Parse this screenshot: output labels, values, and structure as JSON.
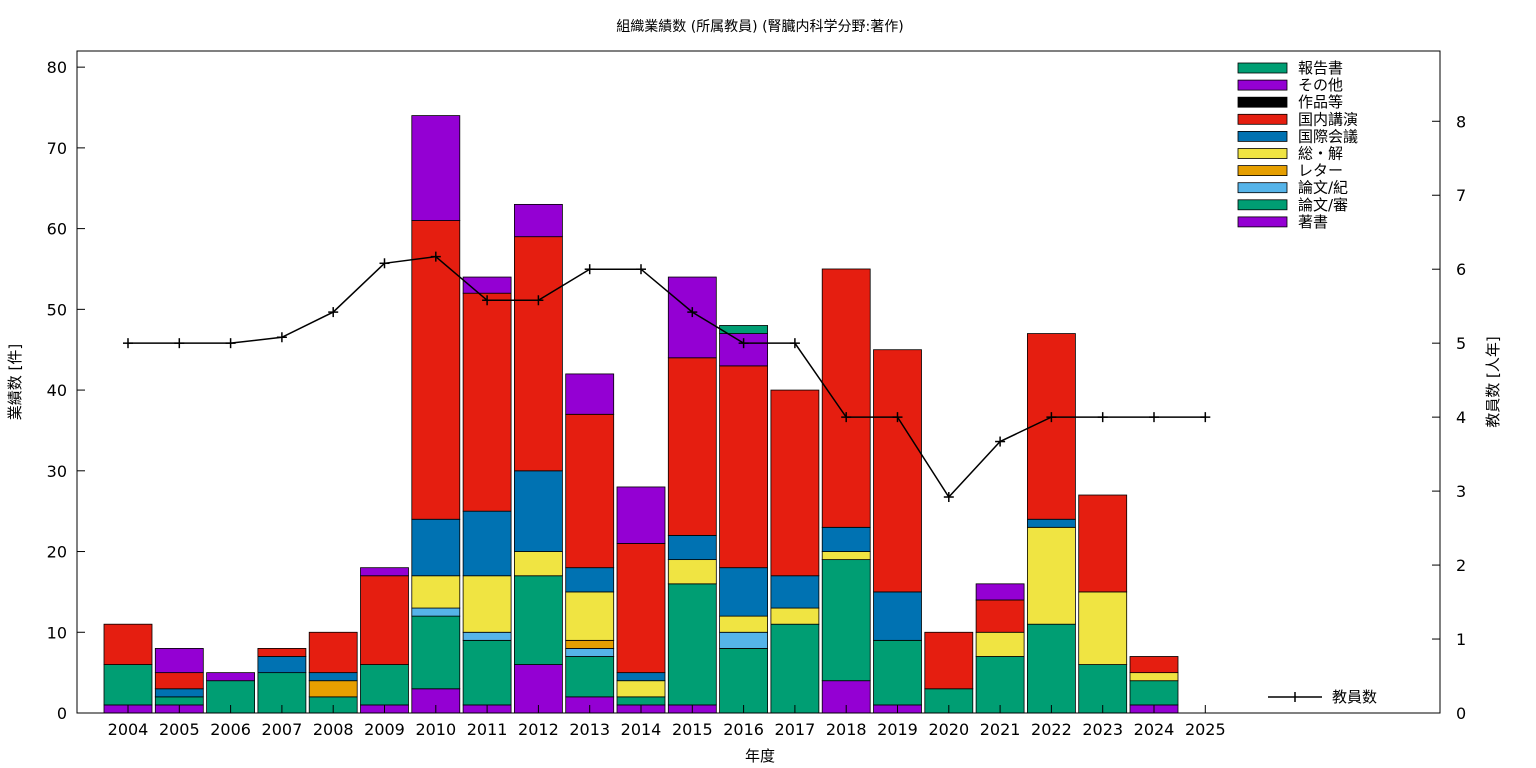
{
  "chart_data": {
    "type": "bar",
    "title": "組織業績数 (所属教員) (腎臓内科学分野:著作)",
    "xlabel": "年度",
    "ylabel": "業績数 [件]",
    "y2label": "教員数 [人年]",
    "ylim": [
      0,
      82
    ],
    "y2lim": [
      0,
      8.95
    ],
    "yticks": [
      0,
      10,
      20,
      30,
      40,
      50,
      60,
      70,
      80
    ],
    "y2ticks": [
      0,
      1,
      2,
      3,
      4,
      5,
      6,
      7,
      8
    ],
    "categories": [
      "2004",
      "2005",
      "2006",
      "2007",
      "2008",
      "2009",
      "2010",
      "2011",
      "2012",
      "2013",
      "2014",
      "2015",
      "2016",
      "2017",
      "2018",
      "2019",
      "2020",
      "2021",
      "2022",
      "2023",
      "2024",
      "2025"
    ],
    "stacked": true,
    "series": [
      {
        "name": "著書",
        "color": "#9400d3",
        "values": [
          1,
          1,
          0,
          0,
          0,
          1,
          3,
          1,
          6,
          2,
          1,
          1,
          0,
          0,
          4,
          1,
          0,
          0,
          0,
          0,
          1,
          0
        ]
      },
      {
        "name": "論文/審",
        "color": "#009e73",
        "values": [
          5,
          1,
          4,
          5,
          2,
          5,
          9,
          8,
          11,
          5,
          1,
          15,
          8,
          11,
          15,
          8,
          3,
          7,
          11,
          6,
          3,
          0
        ]
      },
      {
        "name": "論文/紀",
        "color": "#56b4e9",
        "values": [
          0,
          0,
          0,
          0,
          0,
          0,
          1,
          1,
          0,
          1,
          0,
          0,
          2,
          0,
          0,
          0,
          0,
          0,
          0,
          0,
          0,
          0
        ]
      },
      {
        "name": "レター",
        "color": "#e69f00",
        "values": [
          0,
          0,
          0,
          0,
          2,
          0,
          0,
          0,
          0,
          1,
          0,
          0,
          0,
          0,
          0,
          0,
          0,
          0,
          0,
          0,
          0,
          0
        ]
      },
      {
        "name": "総・解",
        "color": "#f0e442",
        "values": [
          0,
          0,
          0,
          0,
          0,
          0,
          4,
          7,
          3,
          6,
          2,
          3,
          2,
          2,
          1,
          0,
          0,
          3,
          12,
          9,
          1,
          0
        ]
      },
      {
        "name": "国際会議",
        "color": "#0072b2",
        "values": [
          0,
          1,
          0,
          2,
          1,
          0,
          7,
          8,
          10,
          3,
          1,
          3,
          6,
          4,
          3,
          6,
          0,
          0,
          1,
          0,
          0,
          0
        ]
      },
      {
        "name": "国内講演",
        "color": "#e51e10",
        "values": [
          5,
          2,
          0,
          1,
          5,
          11,
          37,
          27,
          29,
          19,
          16,
          22,
          25,
          23,
          32,
          30,
          7,
          4,
          23,
          12,
          2,
          0
        ]
      },
      {
        "name": "作品等",
        "color": "#000000",
        "values": [
          0,
          0,
          0,
          0,
          0,
          0,
          0,
          0,
          0,
          0,
          0,
          0,
          0,
          0,
          0,
          0,
          0,
          0,
          0,
          0,
          0,
          0
        ]
      },
      {
        "name": "その他",
        "color": "#9400d3",
        "values": [
          0,
          3,
          1,
          0,
          0,
          1,
          13,
          2,
          4,
          5,
          7,
          10,
          4,
          0,
          0,
          0,
          0,
          2,
          0,
          0,
          0,
          0
        ]
      },
      {
        "name": "報告書",
        "color": "#009e73",
        "values": [
          0,
          0,
          0,
          0,
          0,
          0,
          0,
          0,
          0,
          0,
          0,
          0,
          1,
          0,
          0,
          0,
          0,
          0,
          0,
          0,
          0,
          0
        ]
      }
    ],
    "line": {
      "name": "教員数",
      "axis": "y2",
      "color": "#000000",
      "values": [
        5,
        5,
        5,
        5.08,
        5.42,
        6.08,
        6.17,
        5.58,
        5.58,
        6,
        6,
        5.42,
        5,
        5,
        4,
        4,
        2.92,
        3.67,
        4,
        4,
        4,
        4
      ]
    },
    "legend_position": "top-right"
  }
}
